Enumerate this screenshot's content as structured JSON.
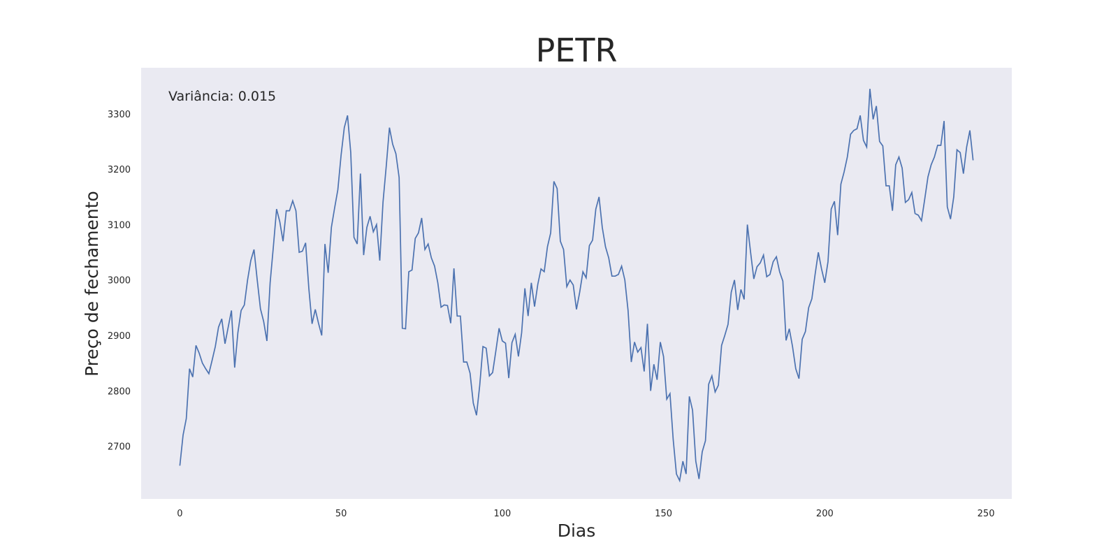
{
  "chart_data": {
    "type": "line",
    "title": "PETR",
    "xlabel": "Dias",
    "ylabel": "Preço de fechamento",
    "annotation": "Variância: 0.015",
    "xlim": [
      -12,
      258
    ],
    "ylim": [
      2605,
      3383
    ],
    "xticks": [
      0,
      50,
      100,
      150,
      200,
      250
    ],
    "yticks": [
      2700,
      2800,
      2900,
      3000,
      3100,
      3200,
      3300
    ],
    "grid": false,
    "colors": {
      "line": "#4c72b0",
      "plot_bg": "#eaeaf2"
    },
    "series": [
      {
        "values": [
          2665,
          2720,
          2750,
          2840,
          2825,
          2882,
          2868,
          2850,
          2840,
          2831,
          2855,
          2880,
          2915,
          2930,
          2885,
          2915,
          2945,
          2842,
          2905,
          2945,
          2955,
          3000,
          3035,
          3055,
          3000,
          2948,
          2925,
          2890,
          2995,
          3060,
          3128,
          3105,
          3070,
          3125,
          3125,
          3143,
          3125,
          3050,
          3052,
          3067,
          2985,
          2921,
          2947,
          2922,
          2900,
          3065,
          3013,
          3095,
          3130,
          3163,
          3225,
          3275,
          3297,
          3230,
          3077,
          3065,
          3192,
          3045,
          3095,
          3115,
          3087,
          3100,
          3035,
          3140,
          3205,
          3275,
          3245,
          3228,
          3185,
          2913,
          2912,
          3015,
          3018,
          3075,
          3085,
          3112,
          3055,
          3065,
          3040,
          3025,
          2995,
          2951,
          2955,
          2954,
          2922,
          3021,
          2935,
          2935,
          2852,
          2852,
          2832,
          2778,
          2756,
          2810,
          2880,
          2877,
          2827,
          2833,
          2872,
          2913,
          2890,
          2886,
          2823,
          2887,
          2902,
          2862,
          2905,
          2985,
          2935,
          2995,
          2952,
          2992,
          3020,
          3015,
          3060,
          3085,
          3178,
          3165,
          3070,
          3055,
          2988,
          3000,
          2991,
          2947,
          2978,
          3015,
          3004,
          3062,
          3072,
          3128,
          3150,
          3095,
          3060,
          3040,
          3007,
          3007,
          3010,
          3025,
          3000,
          2945,
          2852,
          2888,
          2870,
          2878,
          2835,
          2921,
          2800,
          2848,
          2820,
          2888,
          2862,
          2785,
          2795,
          2712,
          2650,
          2638,
          2673,
          2650,
          2790,
          2765,
          2673,
          2641,
          2690,
          2710,
          2812,
          2827,
          2798,
          2810,
          2882,
          2900,
          2920,
          2978,
          3000,
          2946,
          2983,
          2965,
          3100,
          3050,
          3002,
          3024,
          3031,
          3045,
          3006,
          3010,
          3033,
          3042,
          3015,
          2998,
          2891,
          2912,
          2880,
          2840,
          2822,
          2893,
          2907,
          2950,
          2966,
          3010,
          3050,
          3020,
          2995,
          3033,
          3128,
          3142,
          3081,
          3173,
          3195,
          3222,
          3263,
          3270,
          3273,
          3297,
          3252,
          3240,
          3345,
          3290,
          3314,
          3250,
          3242,
          3170,
          3170,
          3125,
          3208,
          3222,
          3202,
          3140,
          3145,
          3158,
          3120,
          3117,
          3107,
          3146,
          3186,
          3208,
          3222,
          3243,
          3243,
          3287,
          3132,
          3110,
          3150,
          3235,
          3230,
          3192,
          3240,
          3270,
          3216
        ]
      }
    ]
  }
}
